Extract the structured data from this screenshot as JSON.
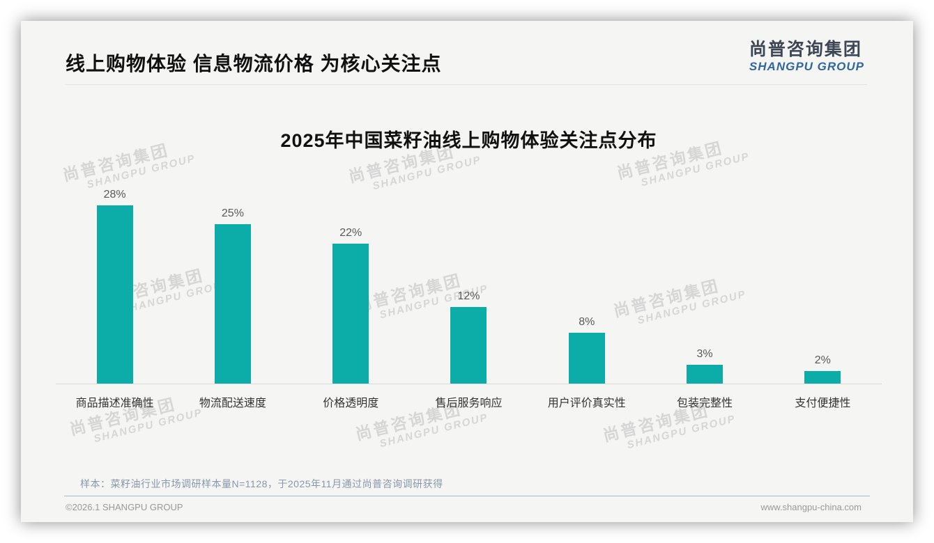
{
  "slide": {
    "title": "线上购物体验 信息物流价格 为核心关注点",
    "logo": {
      "cn": "尚普咨询集团",
      "en": "SHANGPU GROUP"
    },
    "watermark": {
      "cn": "尚普咨询集团",
      "en": "SHANGPU GROUP"
    },
    "footer": {
      "note": "样本：菜籽油行业市场调研样本量N=1128，于2025年11月通过尚普咨询调研获得",
      "copyright": "©2026.1 SHANGPU GROUP",
      "website": "www.shangpu-china.com"
    },
    "colors": {
      "logo_en_blue": "#2f679f",
      "note_blue_gray": "#8897ad"
    }
  },
  "chart_data": {
    "type": "bar",
    "title": "2025年中国菜籽油线上购物体验关注点分布",
    "categories": [
      "商品描述准确性",
      "物流配送速度",
      "价格透明度",
      "售后服务响应",
      "用户评价真实性",
      "包装完整性",
      "支付便捷性"
    ],
    "values": [
      28,
      25,
      22,
      12,
      8,
      3,
      2
    ],
    "value_labels": [
      "28%",
      "25%",
      "22%",
      "12%",
      "8%",
      "3%",
      "2%"
    ],
    "unit": "%",
    "bar_color": "#0cada8",
    "value_label_color": "#595959",
    "xlabel": "",
    "ylabel": "",
    "ylim": [
      0,
      30
    ],
    "grid": false,
    "legend": false
  }
}
